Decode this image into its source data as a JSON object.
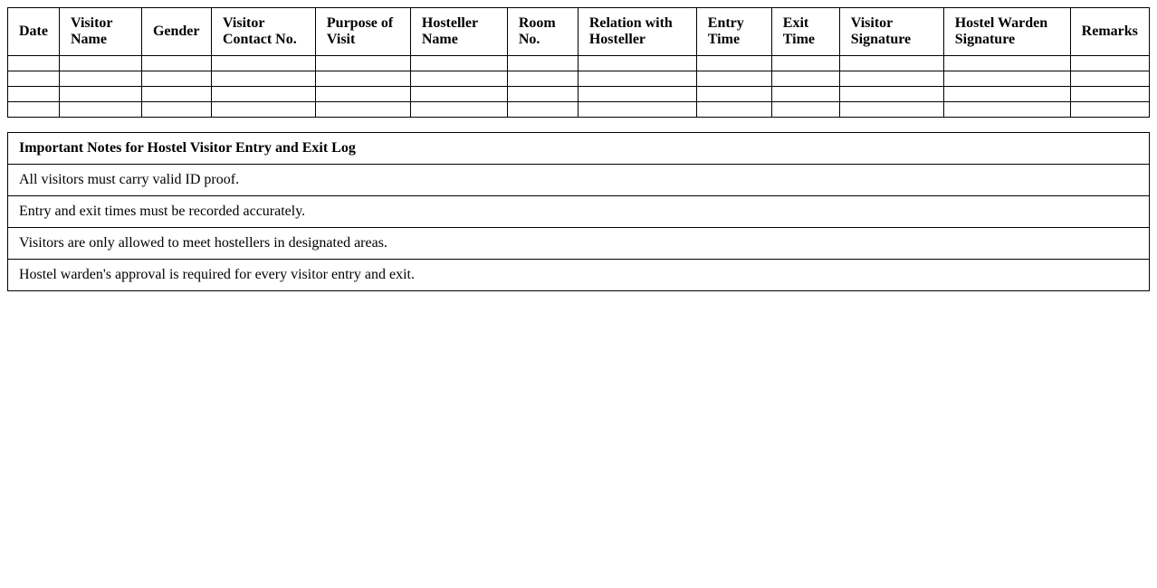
{
  "log": {
    "headers": [
      "Date",
      "Visitor Name",
      "Gender",
      "Visitor Contact No.",
      "Purpose of Visit",
      "Hosteller Name",
      "Room No.",
      "Relation with Hosteller",
      "Entry Time",
      "Exit Time",
      "Visitor Signature",
      "Hostel Warden Signature",
      "Remarks"
    ],
    "empty_rows": 4
  },
  "notes": {
    "title": "Important Notes for Hostel Visitor Entry and Exit Log",
    "items": [
      "All visitors must carry valid ID proof.",
      "Entry and exit times must be recorded accurately.",
      "Visitors are only allowed to meet hostellers in designated areas.",
      "Hostel warden's approval is required for every visitor entry and exit."
    ]
  }
}
